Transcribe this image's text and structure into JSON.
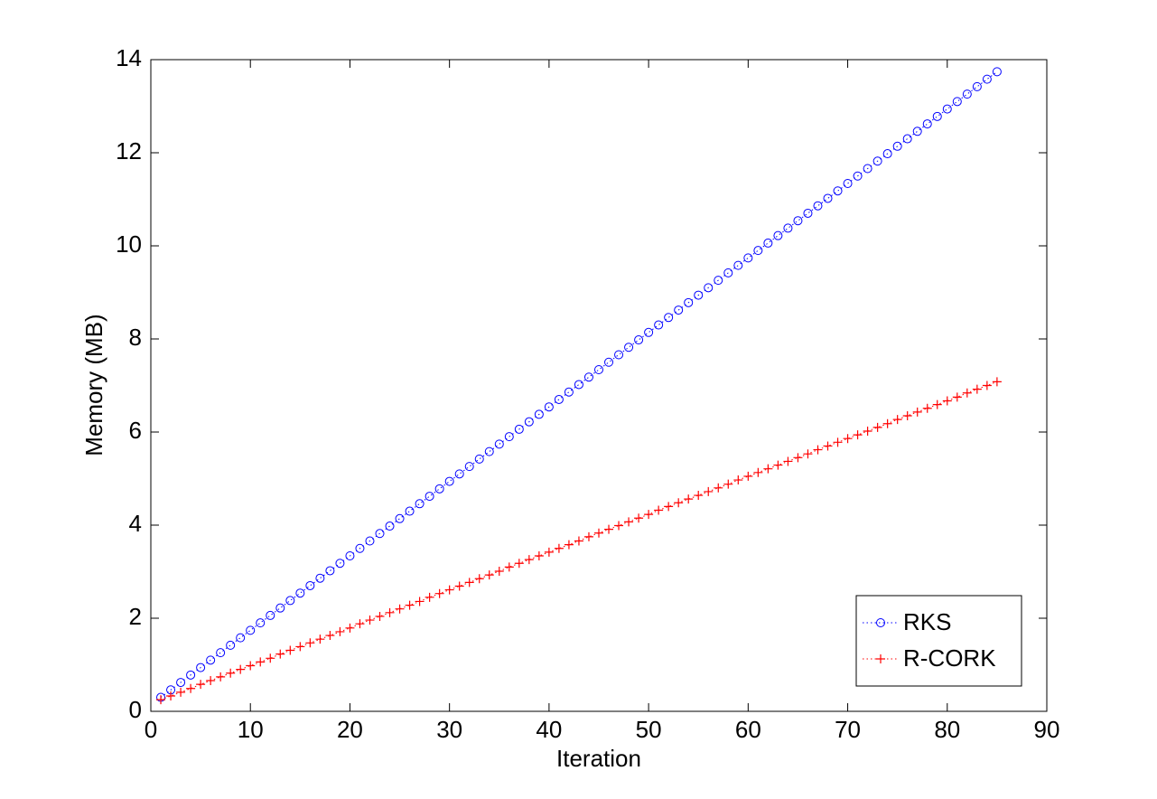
{
  "chart_data": {
    "type": "line",
    "xlabel": "Iteration",
    "ylabel": "Memory (MB)",
    "x": [
      1,
      2,
      3,
      4,
      5,
      6,
      7,
      8,
      9,
      10,
      11,
      12,
      13,
      14,
      15,
      16,
      17,
      18,
      19,
      20,
      21,
      22,
      23,
      24,
      25,
      26,
      27,
      28,
      29,
      30,
      31,
      32,
      33,
      34,
      35,
      36,
      37,
      38,
      39,
      40,
      41,
      42,
      43,
      44,
      45,
      46,
      47,
      48,
      49,
      50,
      51,
      52,
      53,
      54,
      55,
      56,
      57,
      58,
      59,
      60,
      61,
      62,
      63,
      64,
      65,
      66,
      67,
      68,
      69,
      70,
      71,
      72,
      73,
      74,
      75,
      76,
      77,
      78,
      79,
      80,
      81,
      82,
      83,
      84,
      85
    ],
    "series": [
      {
        "name": "RKS",
        "color": "#0000ff",
        "marker": "circle",
        "values": [
          0.3,
          0.46,
          0.62,
          0.78,
          0.94,
          1.1,
          1.26,
          1.42,
          1.58,
          1.74,
          1.9,
          2.06,
          2.22,
          2.38,
          2.54,
          2.7,
          2.86,
          3.02,
          3.18,
          3.34,
          3.5,
          3.66,
          3.82,
          3.98,
          4.14,
          4.3,
          4.46,
          4.62,
          4.78,
          4.94,
          5.1,
          5.26,
          5.42,
          5.58,
          5.74,
          5.9,
          6.06,
          6.22,
          6.38,
          6.54,
          6.7,
          6.86,
          7.02,
          7.18,
          7.34,
          7.5,
          7.66,
          7.82,
          7.98,
          8.14,
          8.3,
          8.46,
          8.62,
          8.78,
          8.94,
          9.1,
          9.26,
          9.42,
          9.58,
          9.74,
          9.9,
          10.06,
          10.22,
          10.38,
          10.54,
          10.7,
          10.86,
          11.02,
          11.18,
          11.34,
          11.5,
          11.66,
          11.82,
          11.98,
          12.14,
          12.3,
          12.46,
          12.62,
          12.78,
          12.94,
          13.1,
          13.26,
          13.42,
          13.58,
          13.74
        ]
      },
      {
        "name": "R-CORK",
        "color": "#ff0000",
        "marker": "plus",
        "values": [
          0.25,
          0.33,
          0.41,
          0.49,
          0.58,
          0.66,
          0.74,
          0.82,
          0.9,
          0.98,
          1.06,
          1.14,
          1.23,
          1.31,
          1.39,
          1.47,
          1.55,
          1.63,
          1.71,
          1.79,
          1.88,
          1.96,
          2.04,
          2.12,
          2.2,
          2.28,
          2.36,
          2.45,
          2.53,
          2.61,
          2.69,
          2.77,
          2.85,
          2.93,
          3.01,
          3.1,
          3.18,
          3.26,
          3.34,
          3.42,
          3.5,
          3.58,
          3.66,
          3.75,
          3.83,
          3.91,
          3.99,
          4.07,
          4.15,
          4.23,
          4.32,
          4.4,
          4.48,
          4.56,
          4.64,
          4.72,
          4.8,
          4.88,
          4.97,
          5.05,
          5.13,
          5.21,
          5.29,
          5.37,
          5.45,
          5.53,
          5.62,
          5.7,
          5.78,
          5.86,
          5.94,
          6.02,
          6.1,
          6.18,
          6.27,
          6.35,
          6.43,
          6.51,
          6.59,
          6.67,
          6.75,
          6.84,
          6.92,
          7.0,
          7.08
        ]
      }
    ],
    "xlim": [
      0,
      90
    ],
    "xticks": [
      0,
      10,
      20,
      30,
      40,
      50,
      60,
      70,
      80,
      90
    ],
    "ylim": [
      0,
      14
    ],
    "yticks": [
      0,
      2,
      4,
      6,
      8,
      10,
      12,
      14
    ],
    "grid": false,
    "legend_position": "lower right"
  }
}
